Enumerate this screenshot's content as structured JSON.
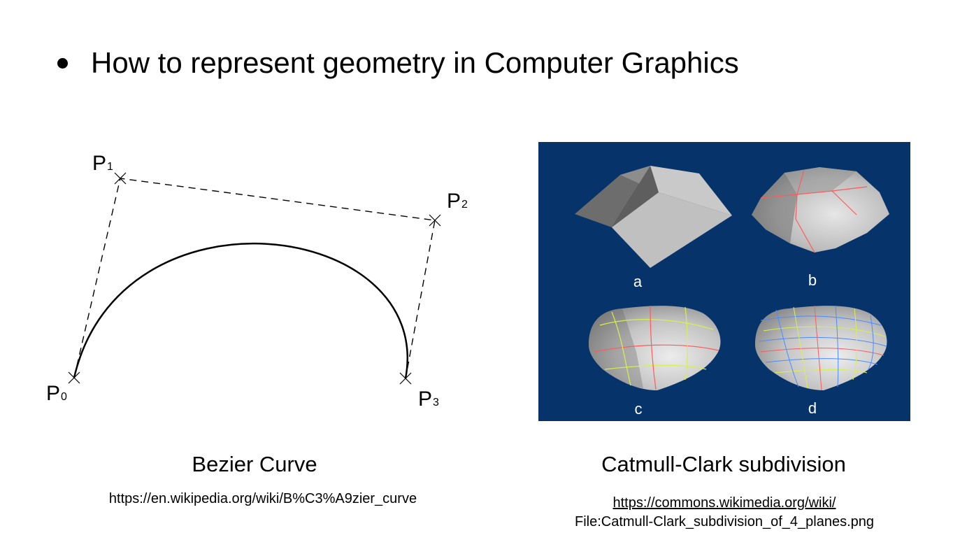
{
  "slide": {
    "bullet": "How to represent geometry in Computer Graphics"
  },
  "bezier": {
    "points": [
      {
        "letter": "P",
        "index": "0"
      },
      {
        "letter": "P",
        "index": "1"
      },
      {
        "letter": "P",
        "index": "2"
      },
      {
        "letter": "P",
        "index": "3"
      }
    ],
    "caption": "Bezier Curve",
    "url": "https://en.wikipedia.org/wiki/B%C3%A9zier_curve"
  },
  "catmull": {
    "panel_letters": [
      "a",
      "b",
      "c",
      "d"
    ],
    "background_color": "#05336a",
    "edge_colors": {
      "level1": "#ff5a5a",
      "level2": "#d8f04a",
      "level3": "#4a8cff"
    },
    "caption": "Catmull-Clark subdivision",
    "url_line1": "https://commons.wikimedia.org/wiki/",
    "url_line2": "File:Catmull-Clark_subdivision_of_4_planes.png"
  }
}
